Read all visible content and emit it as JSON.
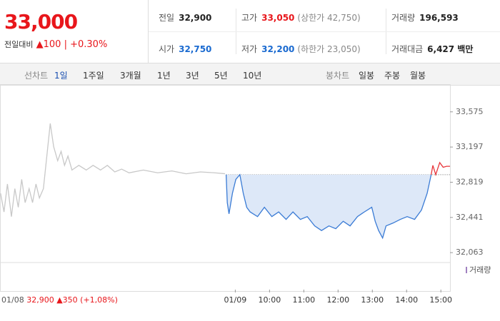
{
  "header": {
    "price": "33,000",
    "change_label": "전일대비",
    "change": "100",
    "change_pct": "+0.30%"
  },
  "stats": [
    {
      "label": "전일",
      "value": "32,900"
    },
    {
      "label": "고가",
      "value": "33,050",
      "extra": "(상한가 42,750)"
    },
    {
      "label": "거래량",
      "value": "196,593"
    },
    {
      "label": "시가",
      "value": "32,750"
    },
    {
      "label": "저가",
      "value": "32,200",
      "extra": "(하한가 23,050)"
    },
    {
      "label": "거래대금",
      "value": "6,427 백만"
    }
  ],
  "tabs": {
    "left_label": "선차트",
    "left": [
      "1일",
      "1주일",
      "3개월",
      "1년",
      "3년",
      "5년",
      "10년"
    ],
    "right_label": "봉차트",
    "right": [
      "일봉",
      "주봉",
      "월봉"
    ]
  },
  "footer": {
    "date": "01/08",
    "price": "32,900",
    "change": "350",
    "pct": "(+1,08%)"
  },
  "volume_label": "거래량",
  "chart_data": {
    "type": "line",
    "reference": 32900,
    "xlim": [
      -22,
      766
    ],
    "ylim": [
      31980,
      33780
    ],
    "yticks": [
      {
        "value": 33575,
        "label": "33,575"
      },
      {
        "value": 33197,
        "label": "33,197"
      },
      {
        "value": 32819,
        "label": "32,819"
      },
      {
        "value": 32441,
        "label": "32,441"
      },
      {
        "value": 32063,
        "label": "32,063"
      }
    ],
    "xticks": [
      {
        "value": 390,
        "label": "01/09"
      },
      {
        "value": 450,
        "label": "10:00"
      },
      {
        "value": 510,
        "label": "11:00"
      },
      {
        "value": 570,
        "label": "12:00"
      },
      {
        "value": 630,
        "label": "13:00"
      },
      {
        "value": 690,
        "label": "14:00"
      },
      {
        "value": 750,
        "label": "15:00"
      }
    ],
    "series": [
      {
        "color": "#c8c8c8",
        "x": [
          -21,
          -15,
          -9,
          -2,
          4,
          10,
          16,
          22,
          29,
          35,
          41,
          47,
          54,
          60,
          66,
          72,
          79,
          85,
          91,
          97,
          104,
          116,
          129,
          141,
          154,
          166,
          179,
          191,
          204,
          229,
          254,
          279,
          304,
          329,
          354,
          372
        ],
        "values": [
          32700,
          32500,
          32800,
          32450,
          32750,
          32550,
          32850,
          32600,
          32750,
          32600,
          32800,
          32650,
          32750,
          33100,
          33450,
          33200,
          33050,
          33150,
          33000,
          33100,
          32950,
          33000,
          32950,
          33000,
          32950,
          33000,
          32930,
          32960,
          32920,
          32950,
          32920,
          32940,
          32910,
          32930,
          32920,
          32910
        ]
      },
      {
        "color": "#3a7bd5",
        "fill": "#dde8f8",
        "x": [
          374,
          376,
          379,
          385,
          391,
          398,
          404,
          410,
          416,
          429,
          441,
          454,
          466,
          479,
          491,
          504,
          516,
          529,
          541,
          554,
          566,
          579,
          591,
          604,
          616,
          629,
          635,
          641,
          648,
          654,
          666,
          679,
          691,
          704,
          716,
          726,
          733
        ],
        "values": [
          32900,
          32600,
          32480,
          32700,
          32850,
          32900,
          32700,
          32550,
          32500,
          32450,
          32550,
          32450,
          32500,
          32420,
          32500,
          32420,
          32450,
          32350,
          32300,
          32350,
          32320,
          32400,
          32350,
          32450,
          32500,
          32550,
          32400,
          32300,
          32220,
          32350,
          32380,
          32420,
          32450,
          32420,
          32520,
          32700,
          32900
        ]
      },
      {
        "color": "#e8363b",
        "x": [
          733,
          736,
          741,
          748,
          754,
          760,
          766
        ],
        "values": [
          32900,
          33000,
          32900,
          33030,
          32980,
          32990,
          32990
        ]
      }
    ]
  }
}
